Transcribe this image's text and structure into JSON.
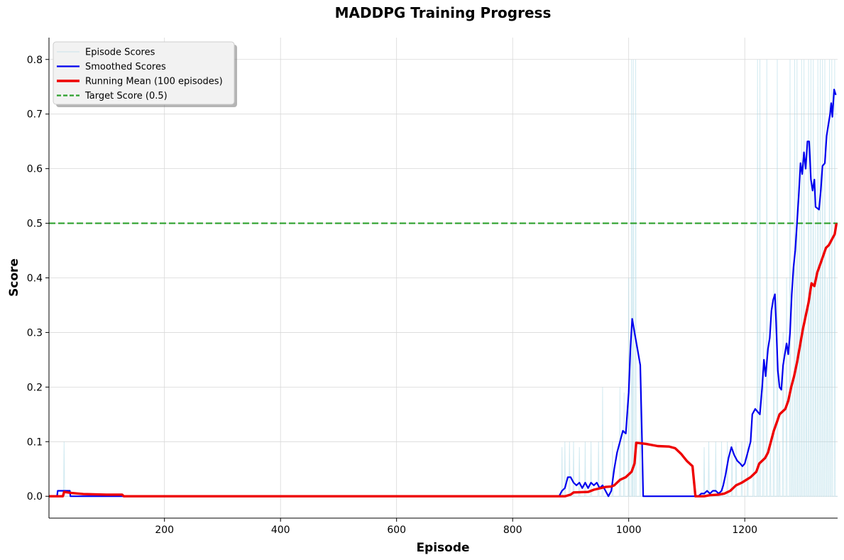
{
  "chart_data": {
    "type": "line",
    "title": "MADDPG Training Progress",
    "xlabel": "Episode",
    "ylabel": "Score",
    "xlim": [
      1,
      1360
    ],
    "ylim": [
      -0.04,
      0.84
    ],
    "xticks": [
      200,
      400,
      600,
      800,
      1000,
      1200
    ],
    "yticks": [
      0.0,
      0.1,
      0.2,
      0.3,
      0.4,
      0.5,
      0.6,
      0.7,
      0.8
    ],
    "grid": true,
    "legend_position": "top-left",
    "target": {
      "name": "Target Score (0.5)",
      "value": 0.5,
      "color": "#2ca02c"
    },
    "series": [
      {
        "name": "Episode Scores",
        "color": "#add8e6",
        "spikes": [
          [
            27,
            0.1
          ],
          [
            885,
            0.09
          ],
          [
            890,
            0.1
          ],
          [
            898,
            0.1
          ],
          [
            905,
            0.1
          ],
          [
            915,
            0.09
          ],
          [
            925,
            0.1
          ],
          [
            935,
            0.1
          ],
          [
            948,
            0.1
          ],
          [
            955,
            0.2
          ],
          [
            972,
            0.1
          ],
          [
            985,
            0.2
          ],
          [
            992,
            0.19
          ],
          [
            1000,
            0.4
          ],
          [
            1005,
            0.8
          ],
          [
            1008,
            0.8
          ],
          [
            1012,
            0.8
          ],
          [
            1020,
            0.2
          ],
          [
            1130,
            0.09
          ],
          [
            1138,
            0.1
          ],
          [
            1150,
            0.1
          ],
          [
            1160,
            0.1
          ],
          [
            1170,
            0.1
          ],
          [
            1178,
            0.1
          ],
          [
            1185,
            0.1
          ],
          [
            1195,
            0.1
          ],
          [
            1205,
            0.1
          ],
          [
            1215,
            0.1
          ],
          [
            1222,
            0.8
          ],
          [
            1226,
            0.8
          ],
          [
            1232,
            0.3
          ],
          [
            1238,
            0.8
          ],
          [
            1244,
            0.1
          ],
          [
            1250,
            0.5
          ],
          [
            1256,
            0.8
          ],
          [
            1260,
            0.1
          ],
          [
            1266,
            0.3
          ],
          [
            1272,
            0.4
          ],
          [
            1278,
            0.8
          ],
          [
            1282,
            0.2
          ],
          [
            1286,
            0.8
          ],
          [
            1290,
            0.8
          ],
          [
            1294,
            0.5
          ],
          [
            1298,
            0.8
          ],
          [
            1302,
            0.8
          ],
          [
            1306,
            0.3
          ],
          [
            1310,
            0.8
          ],
          [
            1314,
            0.8
          ],
          [
            1318,
            0.8
          ],
          [
            1322,
            0.5
          ],
          [
            1326,
            0.8
          ],
          [
            1330,
            0.8
          ],
          [
            1334,
            0.8
          ],
          [
            1338,
            0.8
          ],
          [
            1342,
            0.4
          ],
          [
            1346,
            0.8
          ],
          [
            1350,
            0.8
          ],
          [
            1355,
            0.8
          ]
        ]
      },
      {
        "name": "Smoothed Scores",
        "color": "#0000ee",
        "points": [
          [
            1,
            0.0
          ],
          [
            15,
            0.0
          ],
          [
            16,
            0.01
          ],
          [
            37,
            0.01
          ],
          [
            38,
            0.0
          ],
          [
            880,
            0.0
          ],
          [
            885,
            0.01
          ],
          [
            890,
            0.015
          ],
          [
            895,
            0.035
          ],
          [
            900,
            0.035
          ],
          [
            905,
            0.025
          ],
          [
            910,
            0.02
          ],
          [
            915,
            0.025
          ],
          [
            920,
            0.015
          ],
          [
            925,
            0.025
          ],
          [
            930,
            0.015
          ],
          [
            935,
            0.025
          ],
          [
            940,
            0.02
          ],
          [
            945,
            0.025
          ],
          [
            950,
            0.015
          ],
          [
            955,
            0.02
          ],
          [
            960,
            0.01
          ],
          [
            965,
            0.0
          ],
          [
            970,
            0.01
          ],
          [
            975,
            0.05
          ],
          [
            980,
            0.08
          ],
          [
            985,
            0.1
          ],
          [
            990,
            0.12
          ],
          [
            995,
            0.115
          ],
          [
            1000,
            0.19
          ],
          [
            1003,
            0.27
          ],
          [
            1006,
            0.325
          ],
          [
            1010,
            0.3
          ],
          [
            1015,
            0.27
          ],
          [
            1020,
            0.24
          ],
          [
            1023,
            0.1
          ],
          [
            1025,
            0.0
          ],
          [
            1120,
            0.0
          ],
          [
            1125,
            0.005
          ],
          [
            1130,
            0.005
          ],
          [
            1135,
            0.01
          ],
          [
            1140,
            0.005
          ],
          [
            1145,
            0.01
          ],
          [
            1150,
            0.01
          ],
          [
            1155,
            0.005
          ],
          [
            1160,
            0.01
          ],
          [
            1163,
            0.02
          ],
          [
            1167,
            0.04
          ],
          [
            1172,
            0.07
          ],
          [
            1177,
            0.09
          ],
          [
            1182,
            0.075
          ],
          [
            1187,
            0.065
          ],
          [
            1192,
            0.06
          ],
          [
            1196,
            0.055
          ],
          [
            1200,
            0.06
          ],
          [
            1205,
            0.08
          ],
          [
            1210,
            0.1
          ],
          [
            1213,
            0.15
          ],
          [
            1218,
            0.16
          ],
          [
            1222,
            0.155
          ],
          [
            1226,
            0.15
          ],
          [
            1230,
            0.2
          ],
          [
            1233,
            0.25
          ],
          [
            1236,
            0.22
          ],
          [
            1240,
            0.27
          ],
          [
            1243,
            0.29
          ],
          [
            1246,
            0.34
          ],
          [
            1249,
            0.36
          ],
          [
            1252,
            0.37
          ],
          [
            1254,
            0.32
          ],
          [
            1257,
            0.23
          ],
          [
            1260,
            0.2
          ],
          [
            1263,
            0.195
          ],
          [
            1266,
            0.24
          ],
          [
            1269,
            0.26
          ],
          [
            1272,
            0.28
          ],
          [
            1275,
            0.26
          ],
          [
            1278,
            0.3
          ],
          [
            1281,
            0.37
          ],
          [
            1284,
            0.42
          ],
          [
            1287,
            0.45
          ],
          [
            1290,
            0.5
          ],
          [
            1293,
            0.55
          ],
          [
            1296,
            0.61
          ],
          [
            1299,
            0.59
          ],
          [
            1302,
            0.63
          ],
          [
            1305,
            0.6
          ],
          [
            1308,
            0.65
          ],
          [
            1311,
            0.65
          ],
          [
            1314,
            0.58
          ],
          [
            1317,
            0.56
          ],
          [
            1320,
            0.58
          ],
          [
            1322,
            0.53
          ],
          [
            1328,
            0.525
          ],
          [
            1331,
            0.56
          ],
          [
            1334,
            0.605
          ],
          [
            1338,
            0.61
          ],
          [
            1341,
            0.66
          ],
          [
            1344,
            0.68
          ],
          [
            1347,
            0.7
          ],
          [
            1349,
            0.72
          ],
          [
            1351,
            0.695
          ],
          [
            1354,
            0.745
          ],
          [
            1357,
            0.735
          ]
        ]
      },
      {
        "name": "Running Mean (100 episodes)",
        "color": "#ee0000",
        "points": [
          [
            1,
            0.0
          ],
          [
            25,
            0.0
          ],
          [
            27,
            0.008
          ],
          [
            40,
            0.006
          ],
          [
            60,
            0.004
          ],
          [
            100,
            0.003
          ],
          [
            127,
            0.003
          ],
          [
            130,
            0.0
          ],
          [
            875,
            0.0
          ],
          [
            890,
            0.0
          ],
          [
            900,
            0.003
          ],
          [
            905,
            0.007
          ],
          [
            930,
            0.008
          ],
          [
            940,
            0.012
          ],
          [
            960,
            0.017
          ],
          [
            970,
            0.018
          ],
          [
            975,
            0.02
          ],
          [
            985,
            0.03
          ],
          [
            995,
            0.035
          ],
          [
            1005,
            0.045
          ],
          [
            1010,
            0.06
          ],
          [
            1013,
            0.098
          ],
          [
            1030,
            0.096
          ],
          [
            1050,
            0.092
          ],
          [
            1070,
            0.091
          ],
          [
            1080,
            0.088
          ],
          [
            1090,
            0.078
          ],
          [
            1100,
            0.065
          ],
          [
            1110,
            0.055
          ],
          [
            1115,
            0.0
          ],
          [
            1130,
            0.0
          ],
          [
            1140,
            0.002
          ],
          [
            1155,
            0.003
          ],
          [
            1165,
            0.005
          ],
          [
            1175,
            0.01
          ],
          [
            1185,
            0.02
          ],
          [
            1195,
            0.025
          ],
          [
            1210,
            0.035
          ],
          [
            1220,
            0.045
          ],
          [
            1225,
            0.06
          ],
          [
            1235,
            0.07
          ],
          [
            1240,
            0.08
          ],
          [
            1245,
            0.1
          ],
          [
            1250,
            0.12
          ],
          [
            1255,
            0.135
          ],
          [
            1260,
            0.15
          ],
          [
            1270,
            0.16
          ],
          [
            1275,
            0.175
          ],
          [
            1280,
            0.2
          ],
          [
            1285,
            0.22
          ],
          [
            1290,
            0.245
          ],
          [
            1295,
            0.275
          ],
          [
            1300,
            0.305
          ],
          [
            1305,
            0.33
          ],
          [
            1310,
            0.355
          ],
          [
            1315,
            0.39
          ],
          [
            1320,
            0.385
          ],
          [
            1325,
            0.41
          ],
          [
            1330,
            0.425
          ],
          [
            1335,
            0.44
          ],
          [
            1340,
            0.455
          ],
          [
            1345,
            0.46
          ],
          [
            1350,
            0.47
          ],
          [
            1355,
            0.48
          ],
          [
            1358,
            0.5
          ]
        ]
      }
    ]
  }
}
